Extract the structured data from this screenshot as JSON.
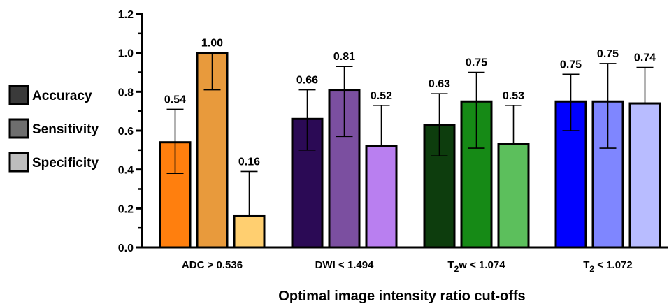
{
  "chart_data": {
    "type": "bar",
    "xlabel": "Optimal image intensity ratio cut-offs",
    "ylabel": "",
    "ylim": [
      0,
      1.2
    ],
    "yticks": [
      "0.0",
      "0.2",
      "0.4",
      "0.6",
      "0.8",
      "1.0",
      "1.2"
    ],
    "ytick_values": [
      0,
      0.2,
      0.4,
      0.6,
      0.8,
      1.0,
      1.2
    ],
    "grid": false,
    "legend_position": "left",
    "legend": [
      {
        "name": "Accuracy",
        "color": "#3a3a3a"
      },
      {
        "name": "Sensitivity",
        "color": "#6e6e6e"
      },
      {
        "name": "Specificity",
        "color": "#bdbdbd"
      }
    ],
    "groups": [
      {
        "label": "ADC > 0.536",
        "label_parts": [
          {
            "text": "ADC  > 0.536"
          }
        ],
        "bars": [
          {
            "metric": "Accuracy",
            "value": 0.54,
            "label": "0.54",
            "err_low": 0.38,
            "err_high": 0.71,
            "color": "#ff7f0e"
          },
          {
            "metric": "Sensitivity",
            "value": 1.0,
            "label": "1.00",
            "err_low": 0.81,
            "err_high": 1.0,
            "color": "#e89a3c"
          },
          {
            "metric": "Specificity",
            "value": 0.16,
            "label": "0.16",
            "err_low": 0.16,
            "err_high": 0.39,
            "color": "#ffcf70"
          }
        ]
      },
      {
        "label": "DWI < 1.494",
        "label_parts": [
          {
            "text": "DWI < 1.494"
          }
        ],
        "bars": [
          {
            "metric": "Accuracy",
            "value": 0.66,
            "label": "0.66",
            "err_low": 0.5,
            "err_high": 0.81,
            "color": "#2b0a55"
          },
          {
            "metric": "Sensitivity",
            "value": 0.81,
            "label": "0.81",
            "err_low": 0.57,
            "err_high": 0.93,
            "color": "#7b4fa0"
          },
          {
            "metric": "Specificity",
            "value": 0.52,
            "label": "0.52",
            "err_low": 0.52,
            "err_high": 0.73,
            "color": "#b97ff0"
          }
        ]
      },
      {
        "label": "T2w < 1.074",
        "label_parts": [
          {
            "text": "T"
          },
          {
            "text": "2",
            "sub": true
          },
          {
            "text": "w < 1.074"
          }
        ],
        "bars": [
          {
            "metric": "Accuracy",
            "value": 0.63,
            "label": "0.63",
            "err_low": 0.47,
            "err_high": 0.79,
            "color": "#0d3d0d"
          },
          {
            "metric": "Sensitivity",
            "value": 0.75,
            "label": "0.75",
            "err_low": 0.51,
            "err_high": 0.9,
            "color": "#168a16"
          },
          {
            "metric": "Specificity",
            "value": 0.53,
            "label": "0.53",
            "err_low": 0.53,
            "err_high": 0.73,
            "color": "#5cbf5c"
          }
        ]
      },
      {
        "label": "T2 < 1.072",
        "label_parts": [
          {
            "text": "T"
          },
          {
            "text": "2",
            "sub": true
          },
          {
            "text": " < 1.072"
          }
        ],
        "bars": [
          {
            "metric": "Accuracy",
            "value": 0.75,
            "label": "0.75",
            "err_low": 0.6,
            "err_high": 0.89,
            "color": "#0000ff"
          },
          {
            "metric": "Sensitivity",
            "value": 0.75,
            "label": "0.75",
            "err_low": 0.51,
            "err_high": 0.945,
            "color": "#7f86ff"
          },
          {
            "metric": "Specificity",
            "value": 0.74,
            "label": "0.74",
            "err_low": 0.74,
            "err_high": 0.925,
            "color": "#b8bcff"
          }
        ]
      }
    ]
  }
}
